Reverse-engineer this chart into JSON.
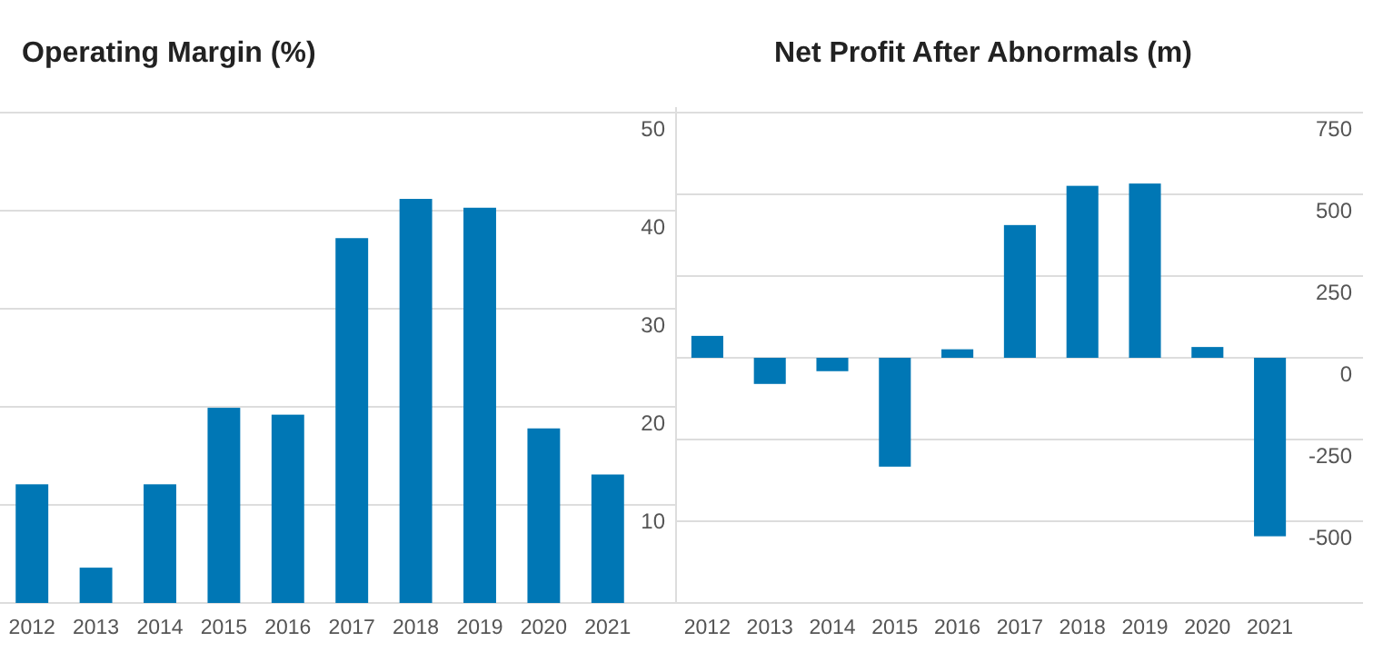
{
  "chart_data": [
    {
      "type": "bar",
      "title": "Operating Margin (%)",
      "categories": [
        "2012",
        "2013",
        "2014",
        "2015",
        "2016",
        "2017",
        "2018",
        "2019",
        "2020",
        "2021"
      ],
      "series": [
        {
          "color": "#0077b5",
          "values": [
            12.1,
            3.6,
            12.1,
            19.9,
            19.2,
            37.2,
            41.2,
            40.3,
            17.8,
            13.1
          ]
        }
      ],
      "ylim": [
        0,
        50
      ],
      "yticks": [
        {
          "value": 0,
          "label": null
        },
        10,
        20,
        30,
        40,
        50
      ],
      "grid": "y"
    },
    {
      "type": "bar",
      "title": "Net Profit After Abnormals (m)",
      "categories": [
        "2012",
        "2013",
        "2014",
        "2015",
        "2016",
        "2017",
        "2018",
        "2019",
        "2020",
        "2021"
      ],
      "series": [
        {
          "color": "#0077b5",
          "values": [
            67,
            -80,
            -41,
            -333,
            26,
            406,
            526,
            533,
            33,
            -546
          ]
        }
      ],
      "ylim": [
        -750,
        750
      ],
      "yticks": [
        {
          "value": -750,
          "label": null
        },
        -500,
        -250,
        0,
        250,
        500,
        750
      ],
      "grid": "y"
    }
  ]
}
